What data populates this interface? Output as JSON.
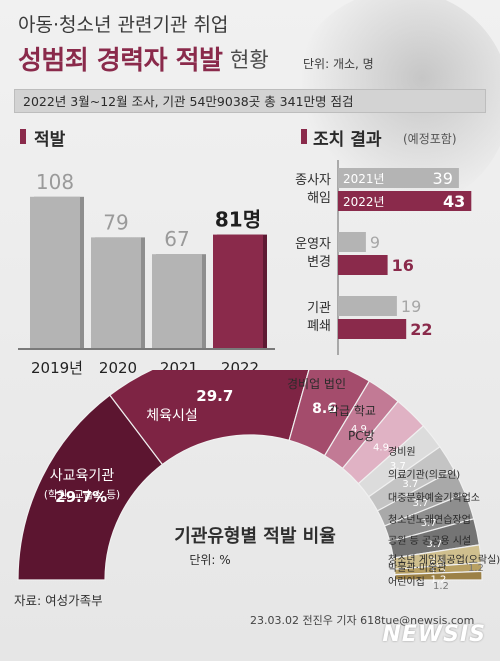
{
  "header": {
    "kicker": "아동·청소년 관련기관 취업",
    "title": "성범죄 경력자 적발",
    "title_tail": "현황",
    "unit": "단위: 개소, 명",
    "survey_note": "2022년 3월~12월 조사, 기관 54만9038곳 총 341만명 점검"
  },
  "left_section": {
    "title": "적발"
  },
  "right_section": {
    "title": "조치 결과",
    "subtitle": "(예정포함)"
  },
  "donut_section": {
    "title": "기관유형별 적발 비율",
    "unit": "단위: %"
  },
  "footer": {
    "source": "자료: 여성가족부",
    "credit": "23.03.02 전진우 기자 618tue@newsis.com",
    "logo": "NEWSIS"
  },
  "colors": {
    "accent": "#8a2a4b",
    "gray_bar": "#b4b4b4",
    "dark_gray": "#4a4a4a"
  },
  "chart_data": [
    {
      "type": "bar",
      "title": "적발",
      "categories": [
        "2019년",
        "2020",
        "2021",
        "2022"
      ],
      "values": [
        108,
        79,
        67,
        81
      ],
      "value_labels": [
        "108",
        "79",
        "67",
        "81명"
      ],
      "highlight_index": 3,
      "ylim": [
        0,
        120
      ]
    },
    {
      "type": "bar",
      "orientation": "horizontal",
      "title": "조치 결과",
      "subtitle": "(예정포함)",
      "groups": [
        {
          "label_lines": [
            "종사자",
            "해임"
          ],
          "values": [
            39,
            43
          ],
          "series_labels": [
            "2021년",
            "2022년"
          ]
        },
        {
          "label_lines": [
            "운영자",
            "변경"
          ],
          "values": [
            9,
            16
          ],
          "series_labels": [
            "",
            ""
          ]
        },
        {
          "label_lines": [
            "기관",
            "폐쇄"
          ],
          "values": [
            19,
            22
          ],
          "series_labels": [
            "",
            ""
          ]
        }
      ],
      "series": [
        {
          "name": "2021년",
          "values": [
            39,
            9,
            19
          ]
        },
        {
          "name": "2022년",
          "values": [
            43,
            16,
            22
          ]
        }
      ],
      "xlim": [
        0,
        50
      ]
    },
    {
      "type": "pie",
      "style": "semi-donut",
      "title": "기관유형별 적발 비율",
      "unit": "단위: %",
      "slices": [
        {
          "label": "사교육기관",
          "sublabel": "(학원, 교습소 등)",
          "value": 29.7,
          "value_label": "29.7%",
          "color": "#5c1530"
        },
        {
          "label": "체육시설",
          "value": 29.7,
          "value_label": "29.7",
          "color": "#7e2444"
        },
        {
          "label": "경비업 법인",
          "value": 8.6,
          "value_label": "8.6",
          "color": "#a44c6c"
        },
        {
          "label": "각급 학교",
          "value": 4.9,
          "value_label": "4.9",
          "color": "#c27a95"
        },
        {
          "label": "PC방",
          "value": 4.9,
          "value_label": "4.9",
          "color": "#e0b2c4"
        },
        {
          "label": "경비원",
          "value": 3.7,
          "value_label": "3.7",
          "color": "#dcdcdc"
        },
        {
          "label": "의료기관(의료인)",
          "value": 3.7,
          "value_label": "3.7",
          "color": "#c4c4c4"
        },
        {
          "label": "대중문화예술기획업소",
          "value": 3.7,
          "value_label": "3.7",
          "color": "#a9a9a9"
        },
        {
          "label": "청소년노래연습장업",
          "value": 3.7,
          "value_label": "3.7",
          "color": "#8e8e8e"
        },
        {
          "label": "공원 등 공공용 시설",
          "value": 3.7,
          "value_label": "3.7",
          "color": "#747474"
        },
        {
          "label": "청소년 게임제공업(오락실)",
          "value": 2.5,
          "value_label": "2.5",
          "color": "#cfbf8e"
        },
        {
          "label": "박물관·미술관",
          "value": 1.2,
          "value_label": "1.2",
          "color": "#b8a063"
        },
        {
          "label": "어린이집",
          "value": 1.2,
          "value_label": "1.2",
          "color": "#9c8146"
        }
      ]
    }
  ]
}
